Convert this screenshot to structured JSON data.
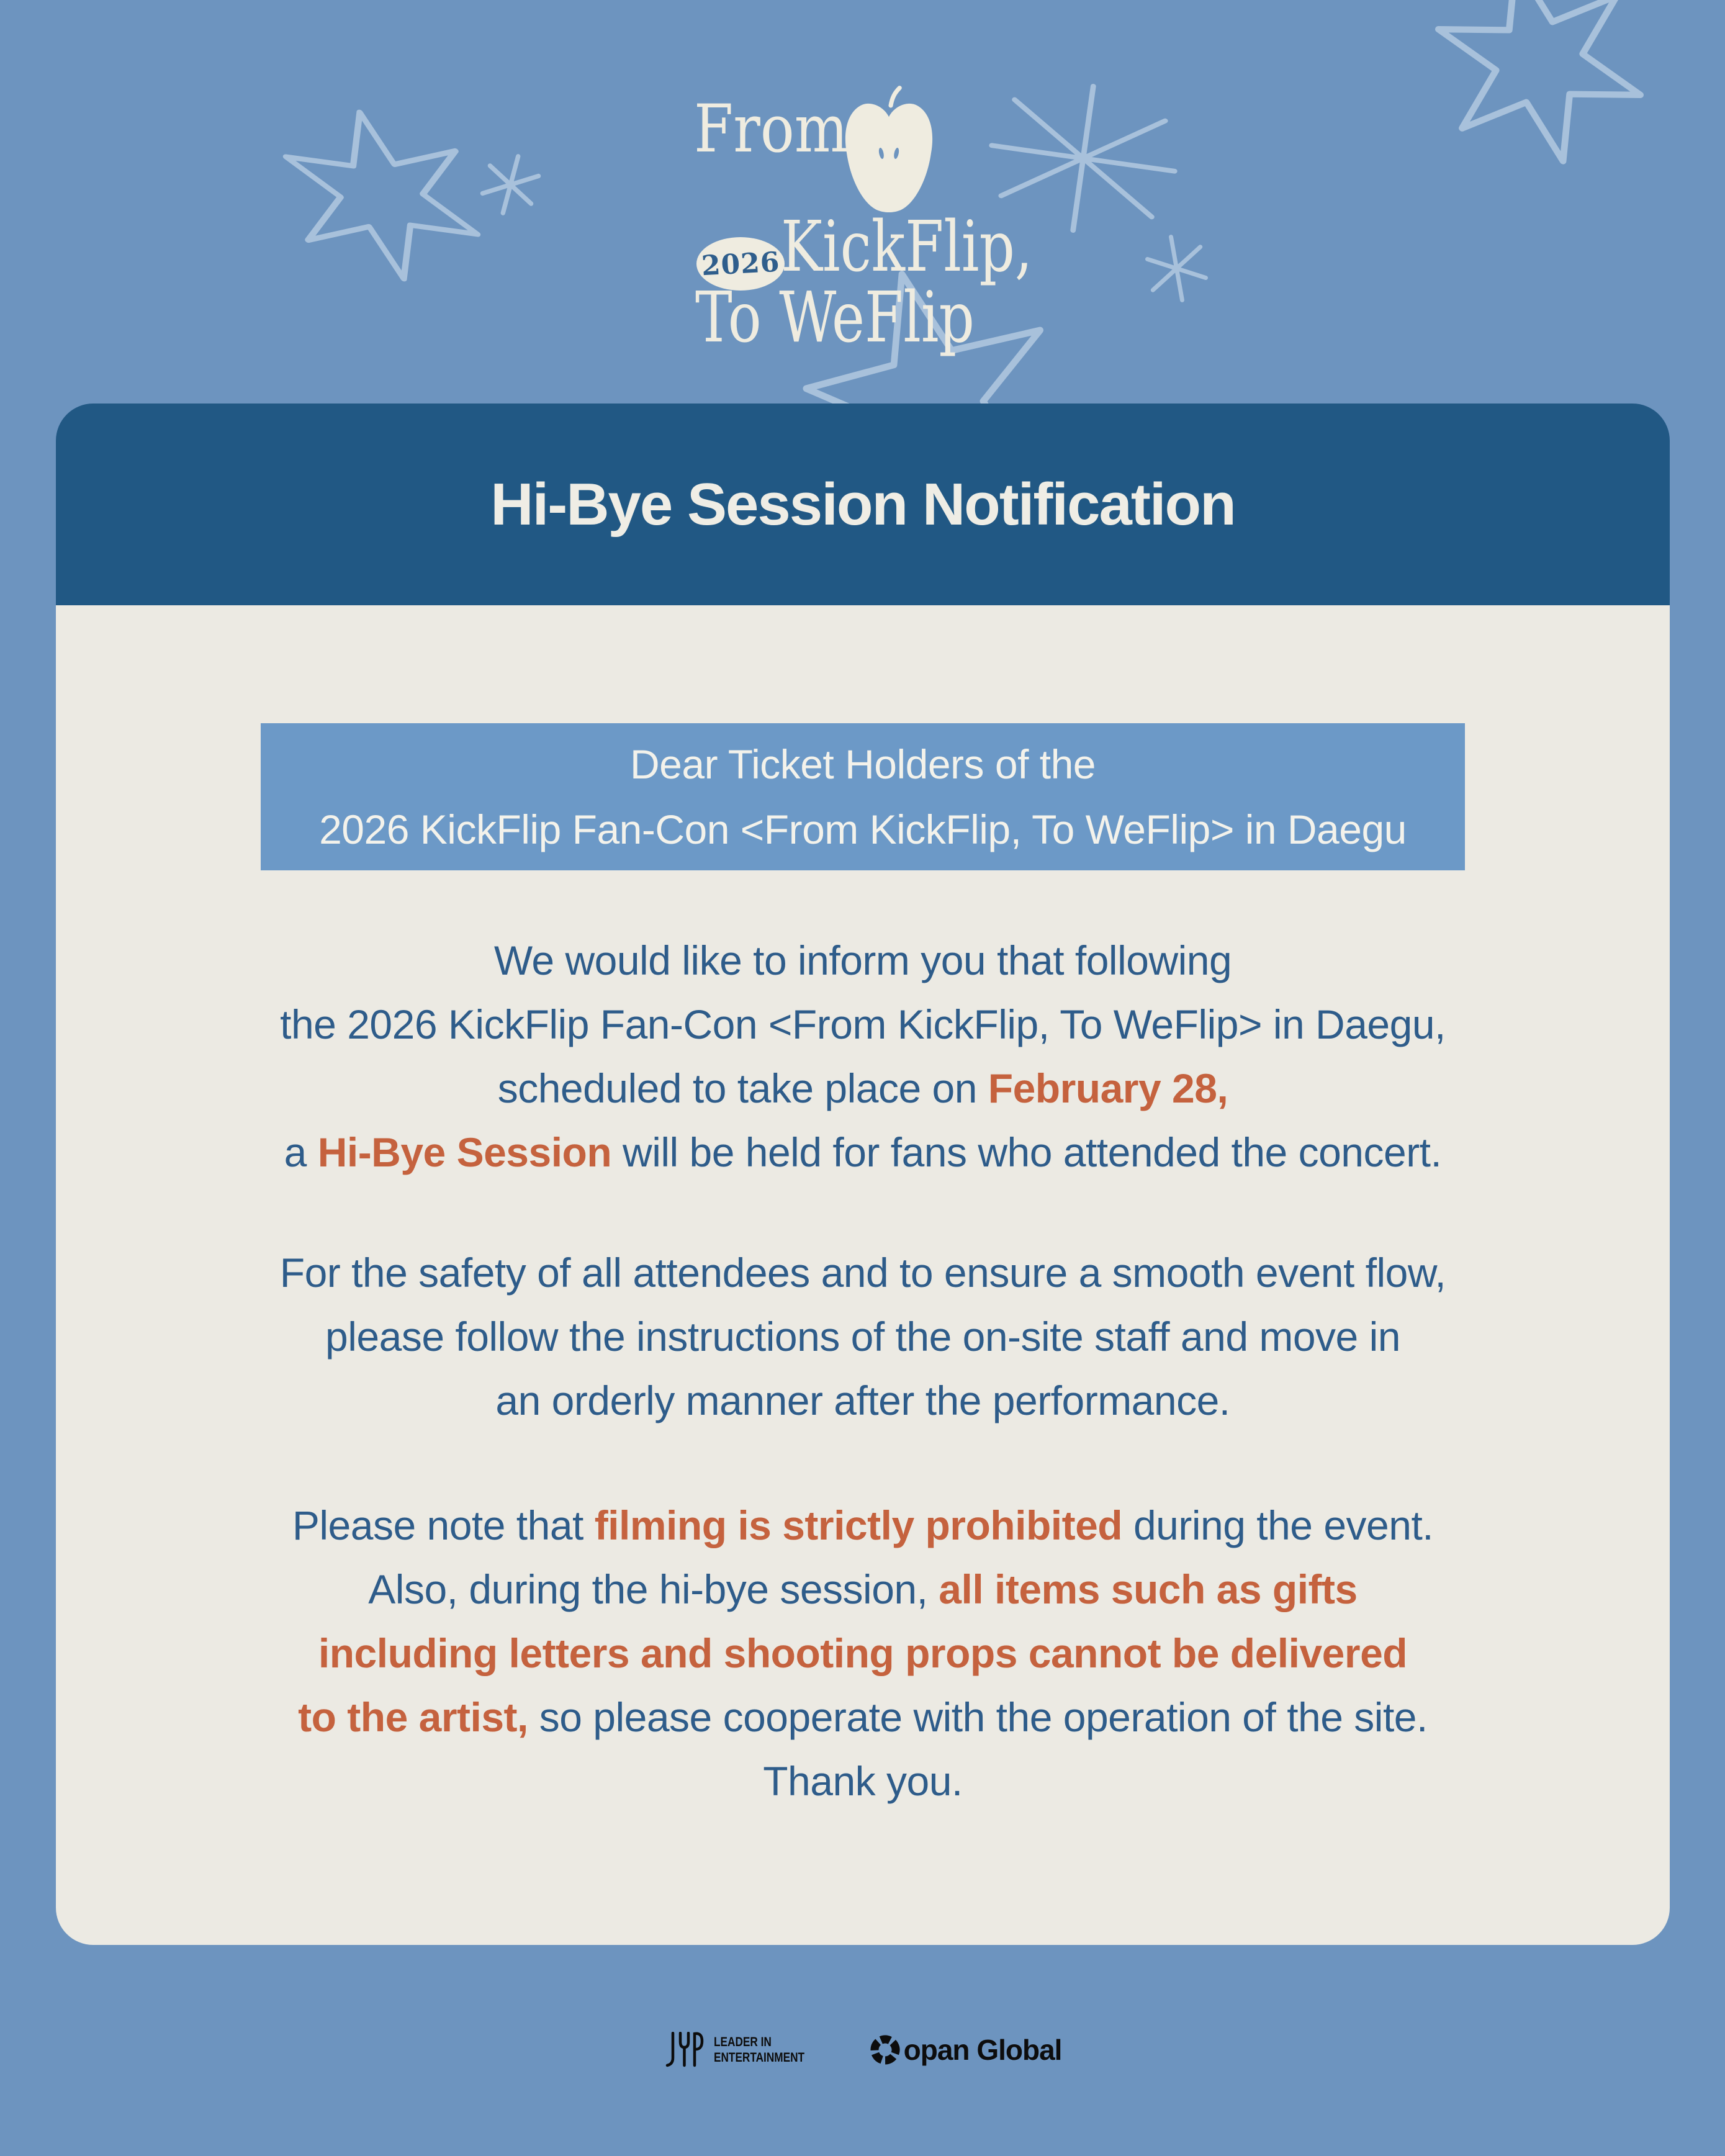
{
  "colors": {
    "background": "#6D94BF",
    "header_bar": "#215884",
    "card": "#ECEAE3",
    "highlight_box": "#6C99C7",
    "body_text": "#2E5C8A",
    "accent_orange": "#C5623E",
    "logo_cream": "#EFECE0",
    "doodle_blue": "#A8C1DB"
  },
  "icons": {
    "logo_mark": "apple-icon",
    "partner_mark": "aperture-c-icon",
    "decorations": [
      "star-doodle-icon",
      "sparkle-doodle-icon",
      "asterisk-doodle-icon"
    ]
  },
  "logo": {
    "from": "From",
    "year_badge": "2026",
    "line2": "KickFlip,",
    "line3": "To WeFlip"
  },
  "header": {
    "title": "Hi-Bye Session Notification"
  },
  "notice_box": {
    "line1": "Dear Ticket Holders of the",
    "line2": "2026 KickFlip Fan-Con <From KickFlip, To WeFlip> in Daegu"
  },
  "paragraphs": [
    {
      "lines": [
        [
          {
            "t": "We would like to inform you that following"
          }
        ],
        [
          {
            "t": "the 2026 KickFlip Fan-Con <From KickFlip, To WeFlip> in Daegu,"
          }
        ],
        [
          {
            "t": "scheduled to take place on "
          },
          {
            "t": "February 28,",
            "hl": true
          }
        ],
        [
          {
            "t": "a "
          },
          {
            "t": "Hi-Bye Session",
            "hl": true
          },
          {
            "t": " will be held for fans who attended the concert."
          }
        ]
      ]
    },
    {
      "lines": [
        [
          {
            "t": "For the safety of all attendees and to ensure a smooth event flow,"
          }
        ],
        [
          {
            "t": "please follow the instructions of the on-site staff and move in"
          }
        ],
        [
          {
            "t": "an orderly manner after the performance."
          }
        ]
      ]
    },
    {
      "lines": [
        [
          {
            "t": "Please note that "
          },
          {
            "t": "filming is strictly prohibited",
            "hl": true
          },
          {
            "t": " during the event."
          }
        ],
        [
          {
            "t": "Also, during the hi-bye session, "
          },
          {
            "t": "all items such as gifts",
            "hl": true
          }
        ],
        [
          {
            "t": "including letters and shooting props cannot be delivered",
            "hl": true
          }
        ],
        [
          {
            "t": "to the artist,",
            "hl": true
          },
          {
            "t": " so please cooperate with the operation of the site."
          }
        ],
        [
          {
            "t": "Thank you."
          }
        ]
      ]
    }
  ],
  "footer": {
    "jyp_name": "JYP",
    "jyp_tagline_line1": "LEADER IN",
    "jyp_tagline_line2": "ENTERTAINMENT",
    "partner_name": "Copan Global",
    "partner_text_after_icon": "opan Global"
  }
}
